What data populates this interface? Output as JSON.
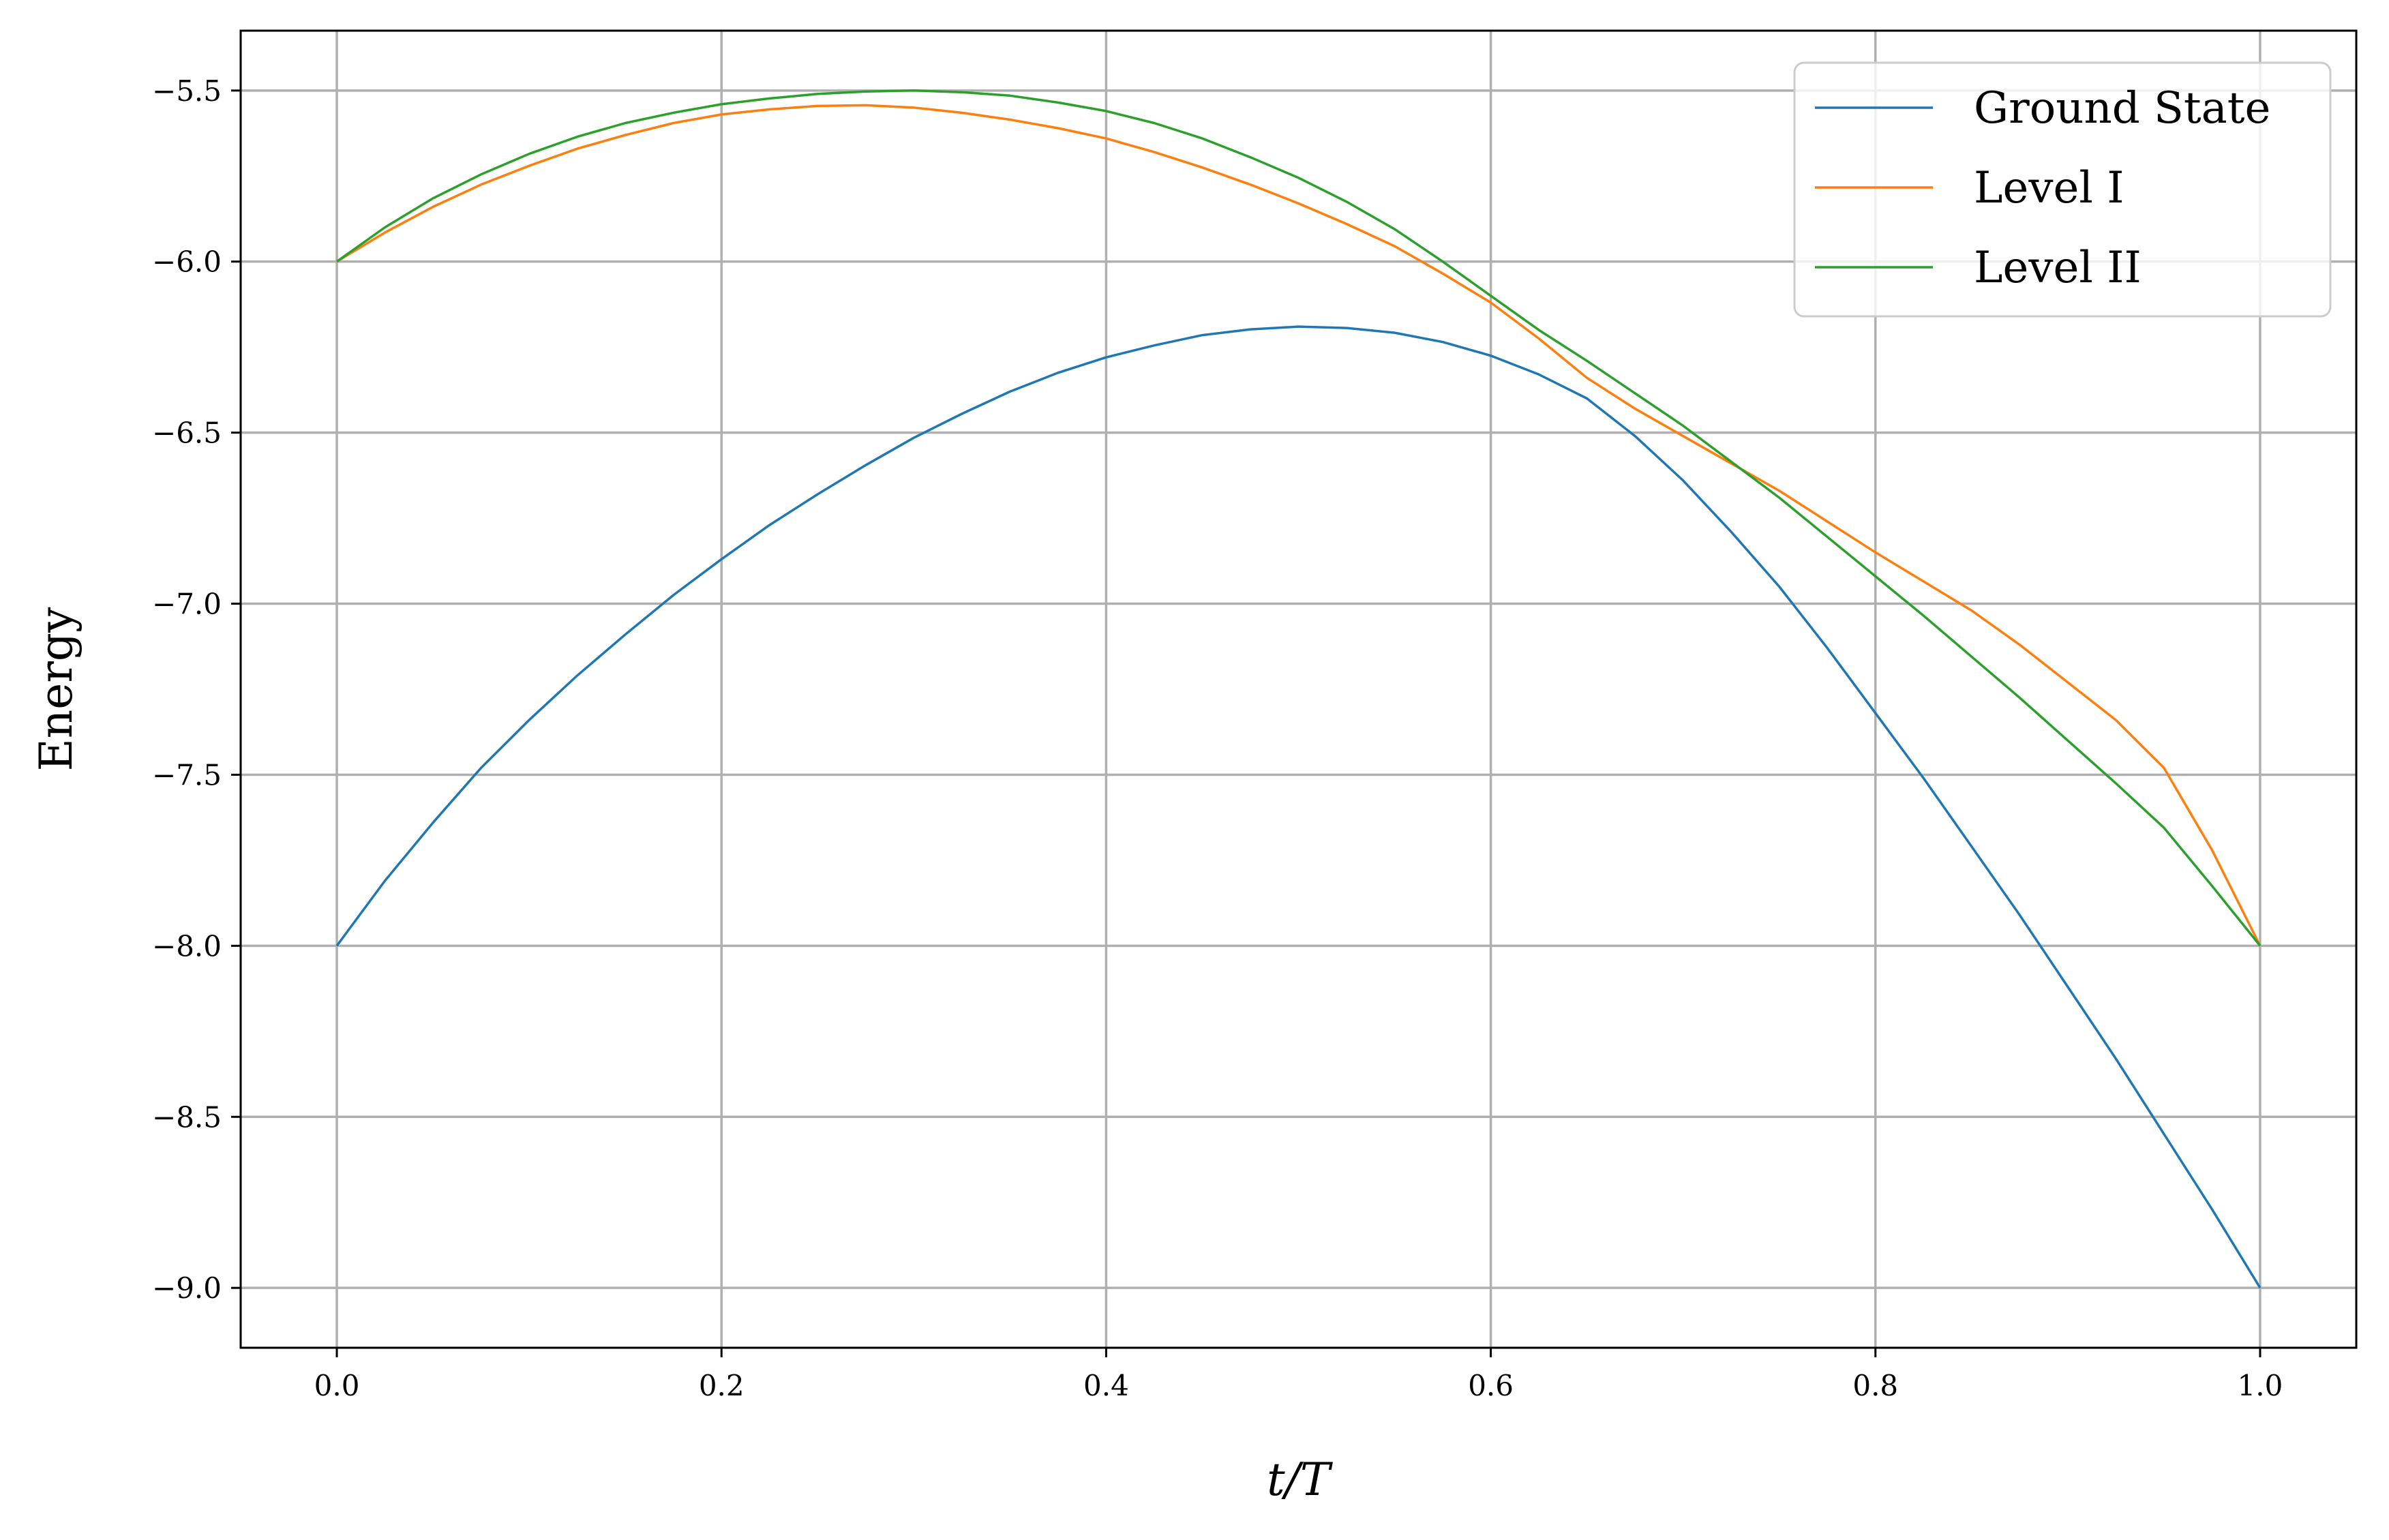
{
  "chart_data": {
    "type": "line",
    "xlabel": "t/T",
    "ylabel": "Energy",
    "xlim": [
      -0.05,
      1.05
    ],
    "ylim": [
      -9.175,
      -5.325
    ],
    "xticks": [
      0.0,
      0.2,
      0.4,
      0.6,
      0.8,
      1.0
    ],
    "xtick_labels": [
      "0.0",
      "0.2",
      "0.4",
      "0.6",
      "0.8",
      "1.0"
    ],
    "yticks": [
      -5.5,
      -6.0,
      -6.5,
      -7.0,
      -7.5,
      -8.0,
      -8.5,
      -9.0
    ],
    "ytick_labels": [
      "−5.5",
      "−6.0",
      "−6.5",
      "−7.0",
      "−7.5",
      "−8.0",
      "−8.5",
      "−9.0"
    ],
    "grid": true,
    "legend_position": "top-right",
    "series": [
      {
        "name": "Ground State",
        "color": "#1f77b4",
        "x": [
          0.0,
          0.025,
          0.05,
          0.075,
          0.1,
          0.125,
          0.15,
          0.175,
          0.2,
          0.225,
          0.25,
          0.275,
          0.3,
          0.325,
          0.35,
          0.375,
          0.4,
          0.425,
          0.45,
          0.475,
          0.5,
          0.525,
          0.55,
          0.575,
          0.6,
          0.625,
          0.65,
          0.675,
          0.7,
          0.725,
          0.75,
          0.775,
          0.8,
          0.825,
          0.85,
          0.875,
          0.9,
          0.925,
          0.95,
          0.975,
          1.0
        ],
        "y": [
          -8.0,
          -7.81,
          -7.64,
          -7.48,
          -7.34,
          -7.21,
          -7.09,
          -6.975,
          -6.87,
          -6.77,
          -6.68,
          -6.595,
          -6.515,
          -6.445,
          -6.38,
          -6.325,
          -6.28,
          -6.245,
          -6.215,
          -6.198,
          -6.19,
          -6.194,
          -6.208,
          -6.235,
          -6.275,
          -6.33,
          -6.4,
          -6.51,
          -6.64,
          -6.79,
          -6.95,
          -7.13,
          -7.32,
          -7.51,
          -7.71,
          -7.91,
          -8.12,
          -8.33,
          -8.55,
          -8.77,
          -9.0
        ]
      },
      {
        "name": "Level I",
        "color": "#ff7f0e",
        "x": [
          0.0,
          0.025,
          0.05,
          0.075,
          0.1,
          0.125,
          0.15,
          0.175,
          0.2,
          0.225,
          0.25,
          0.275,
          0.3,
          0.325,
          0.35,
          0.375,
          0.4,
          0.425,
          0.45,
          0.475,
          0.5,
          0.525,
          0.55,
          0.575,
          0.6,
          0.625,
          0.65,
          0.675,
          0.7,
          0.725,
          0.75,
          0.775,
          0.8,
          0.825,
          0.85,
          0.875,
          0.9,
          0.925,
          0.95,
          0.975,
          1.0
        ],
        "y": [
          -6.0,
          -5.915,
          -5.84,
          -5.775,
          -5.72,
          -5.67,
          -5.63,
          -5.595,
          -5.57,
          -5.555,
          -5.545,
          -5.543,
          -5.55,
          -5.565,
          -5.585,
          -5.61,
          -5.64,
          -5.68,
          -5.725,
          -5.775,
          -5.83,
          -5.89,
          -5.955,
          -6.035,
          -6.12,
          -6.225,
          -6.34,
          -6.43,
          -6.51,
          -6.59,
          -6.67,
          -6.76,
          -6.85,
          -6.935,
          -7.02,
          -7.12,
          -7.23,
          -7.34,
          -7.48,
          -7.72,
          -8.0
        ]
      },
      {
        "name": "Level II",
        "color": "#2ca02c",
        "x": [
          0.0,
          0.025,
          0.05,
          0.075,
          0.1,
          0.125,
          0.15,
          0.175,
          0.2,
          0.225,
          0.25,
          0.275,
          0.3,
          0.325,
          0.35,
          0.375,
          0.4,
          0.425,
          0.45,
          0.475,
          0.5,
          0.525,
          0.55,
          0.575,
          0.6,
          0.625,
          0.65,
          0.675,
          0.7,
          0.725,
          0.75,
          0.775,
          0.8,
          0.825,
          0.85,
          0.875,
          0.9,
          0.925,
          0.95,
          0.975,
          1.0
        ],
        "y": [
          -6.0,
          -5.9,
          -5.815,
          -5.745,
          -5.685,
          -5.635,
          -5.595,
          -5.565,
          -5.54,
          -5.523,
          -5.51,
          -5.503,
          -5.5,
          -5.505,
          -5.515,
          -5.535,
          -5.56,
          -5.595,
          -5.64,
          -5.695,
          -5.755,
          -5.825,
          -5.905,
          -6.0,
          -6.1,
          -6.2,
          -6.29,
          -6.385,
          -6.48,
          -6.585,
          -6.69,
          -6.805,
          -6.92,
          -7.035,
          -7.155,
          -7.275,
          -7.4,
          -7.525,
          -7.655,
          -7.825,
          -8.0
        ]
      }
    ]
  }
}
